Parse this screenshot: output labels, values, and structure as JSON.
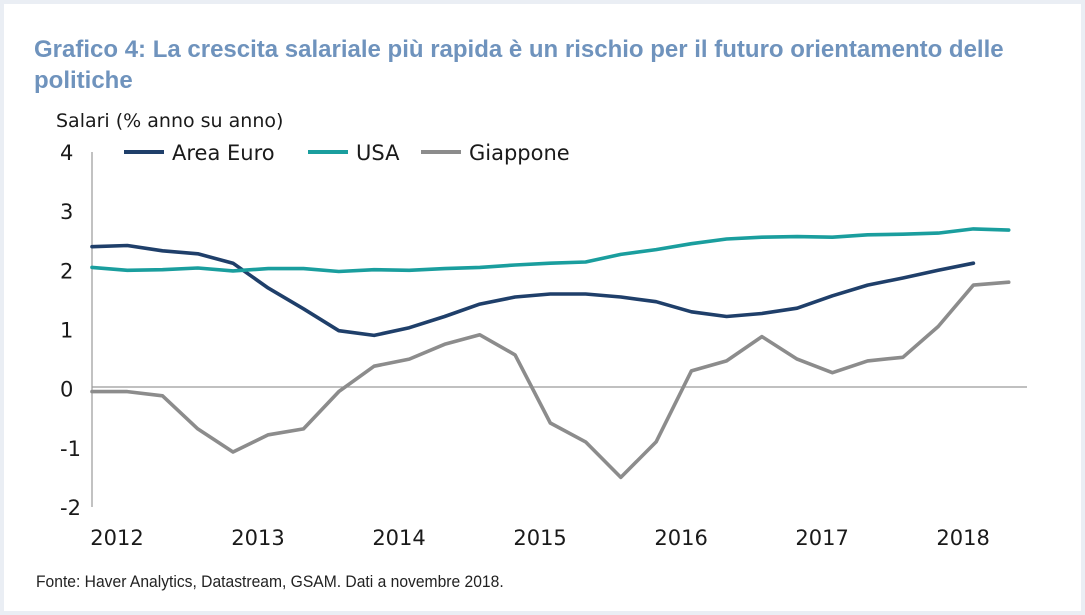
{
  "title": "Grafico 4: La crescita salariale più rapida è un rischio per il futuro orientamento delle politiche",
  "source": "Fonte: Haver Analytics, Datastream, GSAM. Dati a novembre 2018.",
  "colors": {
    "area_euro": "#1f3f6a",
    "usa": "#1a9e9e",
    "giappone": "#8c8c8c",
    "title": "#6f93bd"
  },
  "chart_data": {
    "type": "line",
    "ylabel": "Salari (% anno su anno)",
    "xlabel": "",
    "ylim": [
      -2,
      4
    ],
    "xlim": [
      2012,
      2018.63
    ],
    "y_ticks": [
      "-2",
      "-1",
      "0",
      "1",
      "2",
      "3",
      "4"
    ],
    "x_ticks": [
      "2012",
      "2013",
      "2014",
      "2015",
      "2016",
      "2017",
      "2018"
    ],
    "legend": "top-left",
    "series": [
      {
        "name": "Area Euro",
        "color": "#1f3f6a",
        "x": [
          2012.0,
          2012.25,
          2012.5,
          2012.75,
          2013.0,
          2013.25,
          2013.5,
          2013.75,
          2014.0,
          2014.25,
          2014.5,
          2014.75,
          2015.0,
          2015.25,
          2015.5,
          2015.75,
          2016.0,
          2016.25,
          2016.5,
          2016.75,
          2017.0,
          2017.25,
          2017.5,
          2017.75,
          2018.0,
          2018.25
        ],
        "values": [
          2.4,
          2.42,
          2.33,
          2.28,
          2.12,
          1.7,
          1.35,
          0.98,
          0.9,
          1.03,
          1.22,
          1.43,
          1.55,
          1.6,
          1.6,
          1.55,
          1.47,
          1.3,
          1.22,
          1.27,
          1.36,
          1.57,
          1.75,
          1.87,
          2.0,
          2.12
        ]
      },
      {
        "name": "USA",
        "color": "#1a9e9e",
        "x": [
          2012.0,
          2012.25,
          2012.5,
          2012.75,
          2013.0,
          2013.25,
          2013.5,
          2013.75,
          2014.0,
          2014.25,
          2014.5,
          2014.75,
          2015.0,
          2015.25,
          2015.5,
          2015.75,
          2016.0,
          2016.25,
          2016.5,
          2016.75,
          2017.0,
          2017.25,
          2017.5,
          2017.75,
          2018.0,
          2018.25,
          2018.5
        ],
        "values": [
          2.05,
          2.0,
          2.01,
          2.04,
          1.99,
          2.03,
          2.03,
          1.98,
          2.01,
          2.0,
          2.03,
          2.05,
          2.09,
          2.12,
          2.14,
          2.27,
          2.35,
          2.45,
          2.53,
          2.56,
          2.57,
          2.56,
          2.6,
          2.61,
          2.63,
          2.7,
          2.68
        ]
      },
      {
        "name": "Giappone",
        "color": "#8c8c8c",
        "x": [
          2012.0,
          2012.25,
          2012.5,
          2012.75,
          2013.0,
          2013.25,
          2013.5,
          2013.75,
          2014.0,
          2014.25,
          2014.5,
          2014.75,
          2015.0,
          2015.25,
          2015.5,
          2015.75,
          2016.0,
          2016.25,
          2016.5,
          2016.75,
          2017.0,
          2017.25,
          2017.5,
          2017.75,
          2018.0,
          2018.25,
          2018.5
        ],
        "values": [
          -0.05,
          -0.05,
          -0.12,
          -0.68,
          -1.07,
          -0.78,
          -0.68,
          -0.05,
          0.38,
          0.5,
          0.75,
          0.91,
          0.57,
          -0.58,
          -0.9,
          -1.5,
          -0.9,
          0.3,
          0.47,
          0.88,
          0.5,
          0.27,
          0.47,
          0.53,
          1.05,
          1.75,
          1.8
        ]
      }
    ]
  }
}
